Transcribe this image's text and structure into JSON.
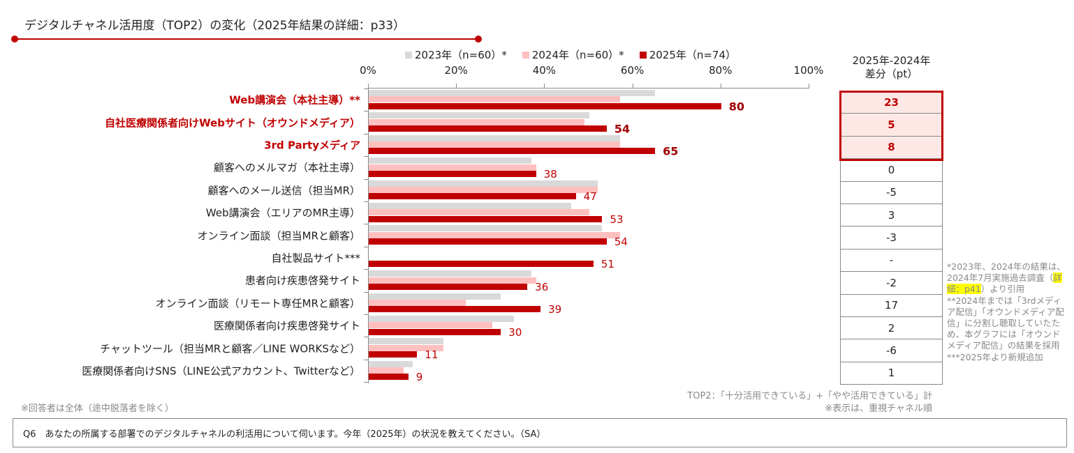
{
  "title": "デジタルチャネル活用度（TOP2）の変化（2025年結果の詳細：p33）",
  "colors": {
    "y2023": "#d9d9d9",
    "y2024": "#ffbfbf",
    "y2025": "#c00000",
    "accent": "#c00000"
  },
  "chart_data": {
    "type": "bar",
    "orientation": "horizontal",
    "xlim": [
      0,
      100
    ],
    "tick_labels": [
      "0%",
      "20%",
      "40%",
      "60%",
      "80%",
      "100%"
    ],
    "legend_position": "top",
    "categories": [
      "Web講演会（本社主導）**",
      "自社医療関係者向けWebサイト（オウンドメディア）",
      "3rd Partyメディア",
      "顧客へのメルマガ（本社主導）",
      "顧客へのメール送信（担当MR）",
      "Web講演会（エリアのMR主導）",
      "オンライン面談（担当MRと顧客）",
      "自社製品サイト***",
      "患者向け疾患啓発サイト",
      "オンライン面談（リモート専任MRと顧客）",
      "医療関係者向け疾患啓発サイト",
      "チャットツール（担当MRと顧客／LINE WORKSなど）",
      "医療関係者向けSNS（LINE公式アカウント、Twitterなど）"
    ],
    "highlighted": [
      true,
      true,
      true,
      false,
      false,
      false,
      false,
      false,
      false,
      false,
      false,
      false,
      false
    ],
    "series": [
      {
        "name": "2023年（n=60）*",
        "values": [
          65,
          50,
          57,
          37,
          52,
          46,
          53,
          null,
          37,
          30,
          33,
          17,
          10
        ]
      },
      {
        "name": "2024年（n=60）*",
        "values": [
          57,
          49,
          57,
          38,
          52,
          50,
          57,
          null,
          38,
          22,
          28,
          17,
          8
        ]
      },
      {
        "name": "2025年（n=74）",
        "values": [
          80,
          54,
          65,
          38,
          47,
          53,
          54,
          51,
          36,
          39,
          30,
          11,
          9
        ]
      }
    ]
  },
  "diff": {
    "header1": "2025年-2024年",
    "header2": "差分（pt）",
    "values": [
      "23",
      "5",
      "8",
      "0",
      "-5",
      "3",
      "-3",
      "-",
      "-2",
      "17",
      "2",
      "-6",
      "1"
    ]
  },
  "notes": {
    "n1a": "*2023年、2024年の結果は、2024年7月実施過去調査（",
    "n1b": "詳細：p41",
    "n1c": "）より引用",
    "n2": "**2024年までは「3rdメディア配信」「オウンドメディア配信」に分割し聴取していたため、本グラフには「オウンドメディア配信」の結果を採用",
    "n3": "***2025年より新規追加"
  },
  "footer": {
    "top2": "TOP2：「十分活用できている」+「やや活用できている」計",
    "order": "※表示は、重視チャネル順",
    "respondents": "※回答者は全体（途中脱落者を除く）",
    "question": "Q6　あなたの所属する部署でのデジタルチャネルの利活用について伺います。今年（2025年）の状況を教えてください。（SA）"
  }
}
